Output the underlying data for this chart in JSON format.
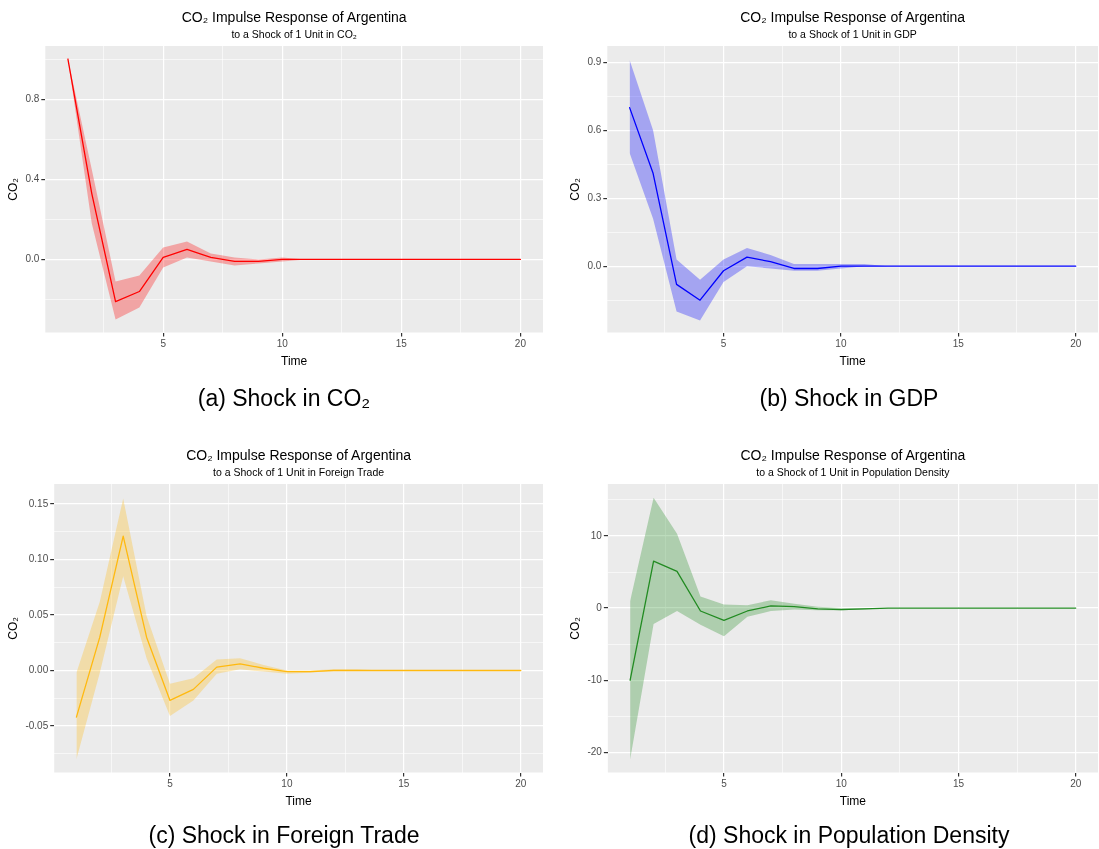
{
  "chart_data": [
    {
      "type": "line",
      "title": "CO₂ Impulse Response of Argentina",
      "subtitle": "to a Shock of 1 Unit in CO₂",
      "xlabel": "Time",
      "ylabel": "CO₂",
      "x": [
        1,
        2,
        3,
        4,
        5,
        6,
        7,
        8,
        9,
        10,
        11,
        12,
        13,
        14,
        15,
        16,
        17,
        18,
        19,
        20
      ],
      "series": [
        {
          "color": "#ff0000",
          "values": [
            1.0,
            0.33,
            -0.21,
            -0.16,
            0.01,
            0.05,
            0.01,
            -0.01,
            -0.01,
            0,
            0,
            0,
            0,
            0,
            0,
            0,
            0,
            0,
            0,
            0
          ],
          "upper": [
            1.0,
            0.45,
            -0.11,
            -0.08,
            0.06,
            0.09,
            0.03,
            0.01,
            0.0,
            0.01,
            0.0,
            0,
            0,
            0,
            0,
            0,
            0,
            0,
            0,
            0
          ],
          "lower": [
            1.0,
            0.18,
            -0.3,
            -0.24,
            -0.04,
            0.01,
            -0.01,
            -0.03,
            -0.02,
            -0.01,
            0,
            0,
            0,
            0,
            0,
            0,
            0,
            0,
            0,
            0
          ]
        }
      ],
      "xlim": [
        0.05,
        20.95
      ],
      "xticks": [
        {
          "value": 2.5,
          "label": null
        },
        5,
        {
          "value": 7.5,
          "label": null
        },
        10,
        {
          "value": 12.5,
          "label": null
        },
        15,
        {
          "value": 17.5,
          "label": null
        },
        20
      ],
      "ylim": [
        -0.365,
        1.065
      ],
      "yticks": [
        {
          "value": -0.2,
          "label": null
        },
        {
          "value": 0,
          "label": "0.0"
        },
        {
          "value": 0.2,
          "label": null
        },
        0.4,
        {
          "value": 0.6,
          "label": null
        },
        0.8,
        {
          "value": 1.0,
          "label": null
        }
      ],
      "grid": true,
      "annotations": [
        "(a) Shock in CO₂"
      ]
    },
    {
      "type": "line",
      "title": "CO₂ Impulse Response of Argentina",
      "subtitle": "to a Shock of 1 Unit in GDP",
      "xlabel": "Time",
      "ylabel": "CO₂",
      "x": [
        1,
        2,
        3,
        4,
        5,
        6,
        7,
        8,
        9,
        10,
        11,
        12,
        13,
        14,
        15,
        16,
        17,
        18,
        19,
        20
      ],
      "series": [
        {
          "color": "#0000ff",
          "values": [
            0.7,
            0.41,
            -0.08,
            -0.15,
            -0.02,
            0.04,
            0.02,
            -0.01,
            -0.01,
            0,
            0,
            0,
            0,
            0,
            0,
            0,
            0,
            0,
            0,
            0
          ],
          "upper": [
            0.91,
            0.6,
            0.03,
            -0.06,
            0.03,
            0.08,
            0.05,
            0.01,
            0.01,
            0.01,
            0.01,
            0,
            0,
            0,
            0,
            0,
            0,
            0,
            0,
            0
          ],
          "lower": [
            0.5,
            0.21,
            -0.2,
            -0.24,
            -0.07,
            0.0,
            -0.01,
            -0.02,
            -0.02,
            -0.01,
            0,
            0,
            0,
            0,
            0,
            0,
            0,
            0,
            0,
            0
          ]
        }
      ],
      "xlim": [
        0.05,
        20.95
      ],
      "xticks": [
        {
          "value": 2.5,
          "label": null
        },
        5,
        {
          "value": 7.5,
          "label": null
        },
        10,
        {
          "value": 12.5,
          "label": null
        },
        15,
        {
          "value": 17.5,
          "label": null
        },
        20
      ],
      "ylim": [
        -0.293,
        0.972
      ],
      "yticks": [
        {
          "value": -0.15,
          "label": null
        },
        {
          "value": 0,
          "label": "0.0"
        },
        {
          "value": 0.15,
          "label": null
        },
        0.3,
        {
          "value": 0.45,
          "label": null
        },
        0.6,
        {
          "value": 0.75,
          "label": null
        },
        0.9
      ],
      "grid": true,
      "annotations": [
        "(b) Shock in GDP"
      ]
    },
    {
      "type": "line",
      "title": "CO₂ Impulse Response of Argentina",
      "subtitle": "to a Shock of 1 Unit in Foreign Trade",
      "xlabel": "Time",
      "ylabel": "CO₂",
      "x": [
        1,
        2,
        3,
        4,
        5,
        6,
        7,
        8,
        9,
        10,
        11,
        12,
        13,
        14,
        15,
        16,
        17,
        18,
        19,
        20
      ],
      "series": [
        {
          "color": "#ffb90f",
          "values": [
            -0.042,
            0.03,
            0.121,
            0.03,
            -0.027,
            -0.017,
            0.003,
            0.006,
            0.002,
            -0.001,
            -0.001,
            0,
            0,
            0,
            0,
            0,
            0,
            0,
            0,
            0
          ],
          "upper": [
            -0.002,
            0.062,
            0.155,
            0.049,
            -0.012,
            -0.007,
            0.01,
            0.011,
            0.005,
            0.0,
            0.0,
            0.001,
            0.001,
            0,
            0,
            0,
            0,
            0,
            0,
            0
          ],
          "lower": [
            -0.08,
            -0.002,
            0.085,
            0.011,
            -0.041,
            -0.027,
            -0.003,
            0.001,
            -0.001,
            -0.003,
            -0.002,
            0,
            0,
            0,
            0,
            0,
            0,
            0,
            0,
            0
          ]
        }
      ],
      "xlim": [
        0.05,
        20.95
      ],
      "xticks": [
        {
          "value": 2.5,
          "label": null
        },
        5,
        {
          "value": 7.5,
          "label": null
        },
        10,
        {
          "value": 12.5,
          "label": null
        },
        15,
        {
          "value": 17.5,
          "label": null
        },
        20
      ],
      "ylim": [
        -0.092,
        0.168
      ],
      "yticks": [
        {
          "value": -0.075,
          "label": null
        },
        -0.05,
        {
          "value": -0.025,
          "label": null
        },
        {
          "value": 0,
          "label": "0.00"
        },
        {
          "value": 0.025,
          "label": null
        },
        0.05,
        {
          "value": 0.075,
          "label": null
        },
        {
          "value": 0.1,
          "label": "0.10"
        },
        {
          "value": 0.125,
          "label": null
        },
        0.15
      ],
      "grid": true,
      "annotations": [
        "(c) Shock in Foreign Trade"
      ]
    },
    {
      "type": "line",
      "title": "CO₂ Impulse Response of Argentina",
      "subtitle": "to a Shock of 1 Unit in Population Density",
      "xlabel": "Time",
      "ylabel": "CO₂",
      "x": [
        1,
        2,
        3,
        4,
        5,
        6,
        7,
        8,
        9,
        10,
        11,
        12,
        13,
        14,
        15,
        16,
        17,
        18,
        19,
        20
      ],
      "series": [
        {
          "color": "#228b22",
          "values": [
            -10.0,
            6.5,
            5.1,
            -0.4,
            -1.7,
            -0.4,
            0.3,
            0.2,
            -0.1,
            -0.2,
            -0.1,
            0,
            0,
            0,
            0,
            0,
            0,
            0,
            0,
            0
          ],
          "upper": [
            1.0,
            15.3,
            10.3,
            1.6,
            0.5,
            0.4,
            1.1,
            0.6,
            0.2,
            0.0,
            0.0,
            0,
            0,
            0,
            0,
            0,
            0,
            0,
            0,
            0
          ],
          "lower": [
            -21.0,
            -2.2,
            -0.4,
            -2.3,
            -3.9,
            -1.2,
            -0.4,
            -0.2,
            -0.3,
            -0.3,
            -0.2,
            0,
            0,
            0,
            0,
            0,
            0,
            0,
            0,
            0
          ]
        }
      ],
      "xlim": [
        0.05,
        20.95
      ],
      "xticks": [
        {
          "value": 2.5,
          "label": null
        },
        5,
        {
          "value": 7.5,
          "label": null
        },
        10,
        {
          "value": 12.5,
          "label": null
        },
        15,
        {
          "value": 17.5,
          "label": null
        },
        20
      ],
      "ylim": [
        -22.8,
        17.2
      ],
      "yticks": [
        {
          "value": -20,
          "label": "-20"
        },
        {
          "value": -15,
          "label": null
        },
        {
          "value": -10,
          "label": "-10"
        },
        {
          "value": -5,
          "label": null
        },
        0,
        {
          "value": 5,
          "label": null
        },
        10,
        {
          "value": 15,
          "label": null
        }
      ],
      "grid": true,
      "annotations": [
        "(d) Shock in Population Density"
      ]
    }
  ]
}
